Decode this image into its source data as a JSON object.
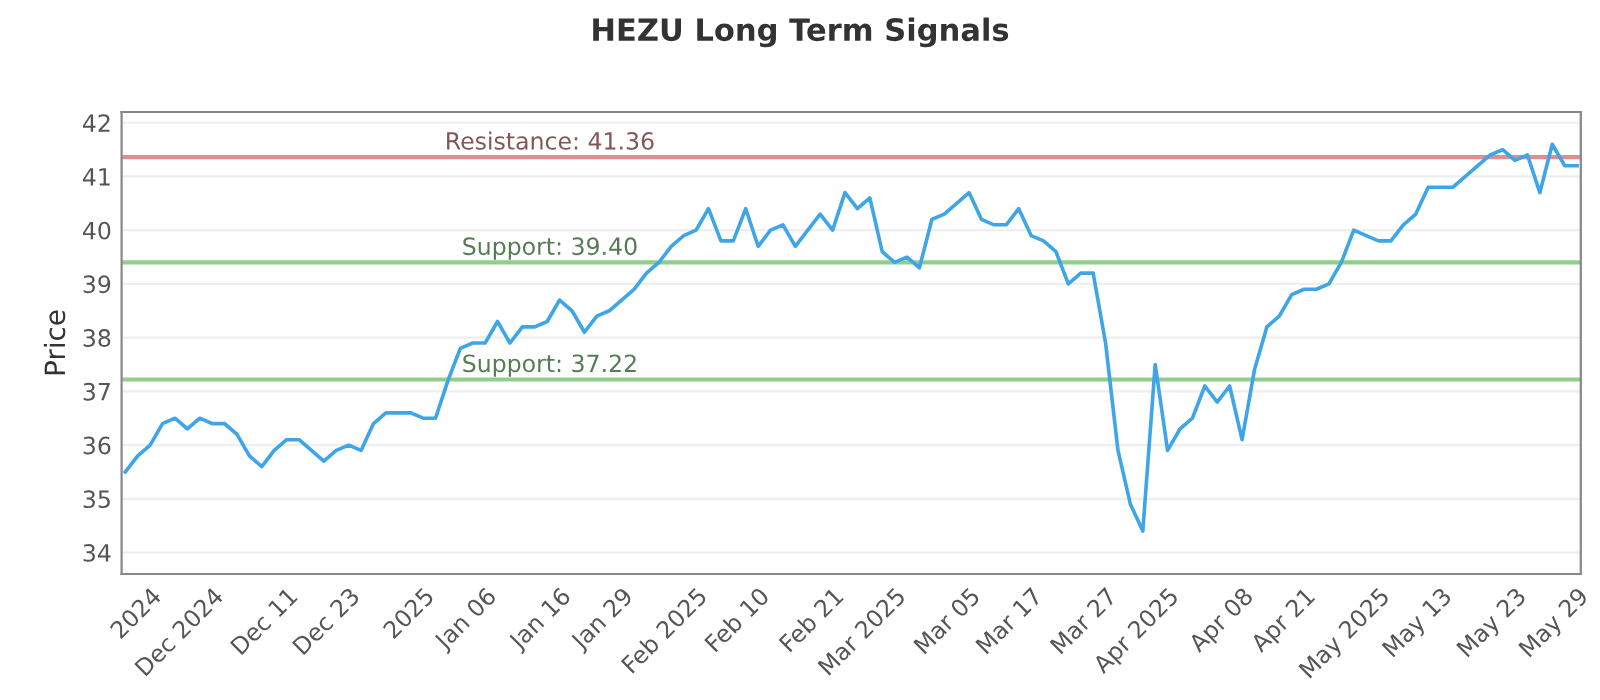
{
  "chart_data": {
    "type": "line",
    "title": "HEZU Long Term Signals",
    "ylabel": "Price",
    "categories": [
      null,
      null,
      "2024",
      null,
      null,
      null,
      null,
      "Dec 2024",
      null,
      null,
      null,
      null,
      null,
      "Dec 11",
      null,
      null,
      null,
      null,
      "Dec 23",
      null,
      null,
      null,
      null,
      null,
      "2025",
      null,
      null,
      null,
      null,
      "Jan 06",
      null,
      null,
      null,
      null,
      null,
      "Jan 16",
      null,
      null,
      null,
      null,
      "Jan 29",
      null,
      null,
      null,
      null,
      null,
      "Feb 2025",
      null,
      null,
      null,
      null,
      "Feb 10",
      null,
      null,
      null,
      null,
      null,
      "Feb 21",
      null,
      null,
      null,
      null,
      "Mar 2025",
      null,
      null,
      null,
      null,
      null,
      "Mar 05",
      null,
      null,
      null,
      null,
      "Mar 17",
      null,
      null,
      null,
      null,
      null,
      "Mar 27",
      null,
      null,
      null,
      null,
      "Apr 2025",
      null,
      null,
      null,
      null,
      null,
      "Apr 08",
      null,
      null,
      null,
      null,
      "Apr 21",
      null,
      null,
      null,
      null,
      null,
      "May 2025",
      null,
      null,
      null,
      null,
      "May 13",
      null,
      null,
      null,
      null,
      null,
      "May 23",
      null,
      null,
      null,
      null,
      "May 29"
    ],
    "series": [
      {
        "color": "#3ea6e8",
        "values": [
          35.5,
          35.8,
          36.0,
          36.4,
          36.5,
          36.3,
          36.5,
          36.4,
          36.4,
          36.2,
          35.8,
          35.6,
          35.9,
          36.1,
          36.1,
          35.9,
          35.7,
          35.9,
          36.0,
          35.9,
          36.4,
          36.6,
          36.6,
          36.6,
          36.5,
          36.5,
          37.2,
          37.8,
          37.9,
          37.9,
          38.3,
          37.9,
          38.2,
          38.2,
          38.3,
          38.7,
          38.5,
          38.1,
          38.4,
          38.5,
          38.7,
          38.9,
          39.2,
          39.4,
          39.7,
          39.9,
          40.0,
          40.4,
          39.8,
          39.8,
          40.4,
          39.7,
          40.0,
          40.1,
          39.7,
          40.0,
          40.3,
          40.0,
          40.7,
          40.4,
          40.6,
          39.6,
          39.4,
          39.5,
          39.3,
          40.2,
          40.3,
          40.5,
          40.7,
          40.2,
          40.1,
          40.1,
          40.4,
          39.9,
          39.8,
          39.6,
          39.0,
          39.2,
          39.2,
          37.9,
          35.9,
          34.9,
          34.4,
          37.5,
          35.9,
          36.3,
          36.5,
          37.1,
          36.8,
          37.1,
          36.1,
          37.4,
          38.2,
          38.4,
          38.8,
          38.9,
          38.9,
          39.0,
          39.4,
          40.0,
          39.9,
          39.8,
          39.8,
          40.1,
          40.3,
          40.8,
          40.8,
          40.8,
          41.0,
          41.2,
          41.4,
          41.5,
          41.3,
          41.4,
          40.7,
          41.6,
          41.2,
          41.2
        ]
      }
    ],
    "ylim": [
      33.6,
      42.2
    ],
    "yticks": [
      34,
      35,
      36,
      37,
      38,
      39,
      40,
      41,
      42
    ],
    "grid": "y",
    "marker": "none",
    "line_style": "solid",
    "ref_lines": [
      {
        "axis": "y",
        "value": 41.36,
        "label": "Resistance: 41.36",
        "color": "#d9908e"
      },
      {
        "axis": "y",
        "value": 39.4,
        "label": "Support: 39.40",
        "color": "#8fcf8a"
      },
      {
        "axis": "y",
        "value": 37.22,
        "label": "Support: 37.22",
        "color": "#8fcf8a"
      }
    ]
  }
}
